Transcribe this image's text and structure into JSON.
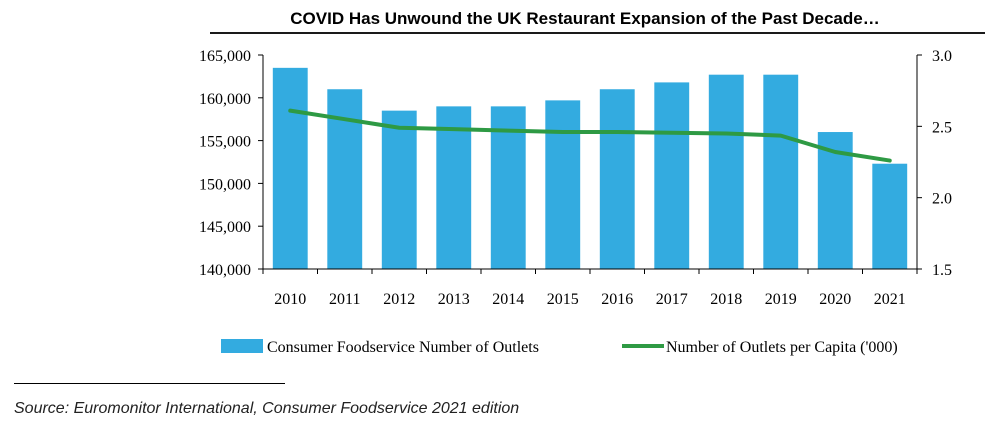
{
  "colors": {
    "bar": "#33ABE0",
    "line": "#2E9A44",
    "axis": "#000000",
    "title_rule": "#1a1a1a"
  },
  "source": "Source: Euromonitor International, Consumer Foodservice 2021 edition",
  "chart_data": {
    "type": "bar",
    "title": "COVID Has Unwound the UK Restaurant Expansion of the Past Decade…",
    "categories": [
      "2010",
      "2011",
      "2012",
      "2013",
      "2014",
      "2015",
      "2016",
      "2017",
      "2018",
      "2019",
      "2020",
      "2021"
    ],
    "series": [
      {
        "name": "Consumer Foodservice Number of Outlets",
        "type": "bar",
        "axis": "left",
        "values": [
          163500,
          161000,
          158500,
          159000,
          159000,
          159700,
          161000,
          161800,
          162700,
          162700,
          156000,
          152300
        ]
      },
      {
        "name": "Number of Outlets per Capita ('000)",
        "type": "line",
        "axis": "right",
        "values": [
          2.61,
          2.55,
          2.49,
          2.48,
          2.47,
          2.46,
          2.46,
          2.455,
          2.45,
          2.435,
          2.32,
          2.26
        ]
      }
    ],
    "y_left": {
      "min": 140000,
      "max": 165000,
      "step": 5000,
      "tick_labels": [
        "140,000",
        "145,000",
        "150,000",
        "155,000",
        "160,000",
        "165,000"
      ]
    },
    "y_right": {
      "min": 1.5,
      "max": 3.0,
      "step": 0.5,
      "tick_labels": [
        "1.5",
        "2.0",
        "2.5",
        "3.0"
      ]
    },
    "legend_position": "bottom"
  }
}
